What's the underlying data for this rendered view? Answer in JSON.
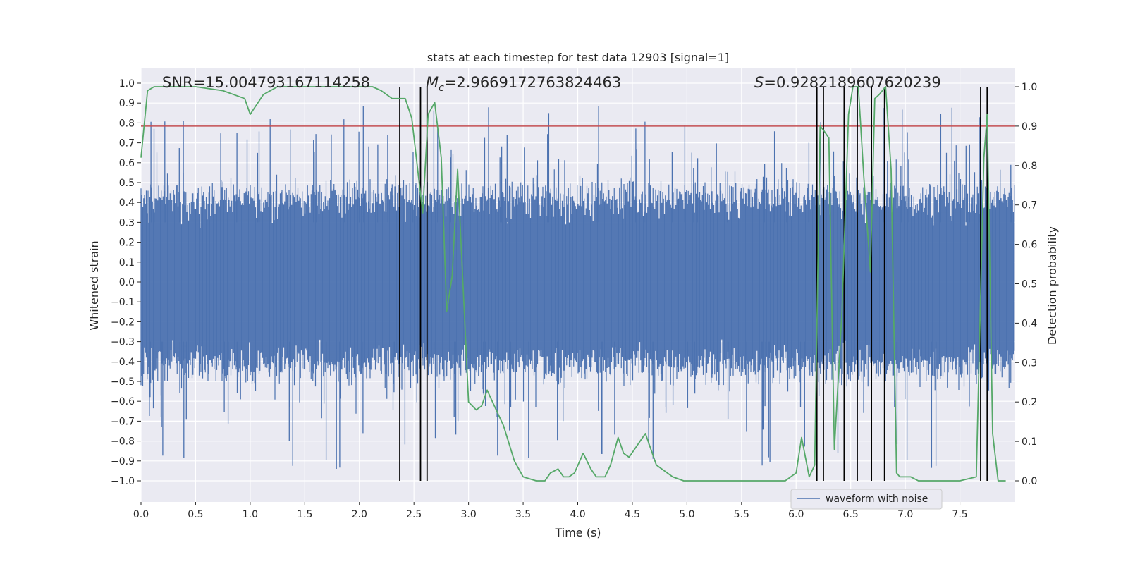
{
  "chart_data": {
    "type": "line",
    "title": "stats at each timestep for test data 12903 [signal=1]",
    "xlabel": "Time (s)",
    "ylabel_left": "Whitened strain",
    "ylabel_right": "Detection probability",
    "xlim": [
      0.0,
      8.0
    ],
    "ylim_left": [
      -1.1,
      1.1
    ],
    "ylim_right": [
      -0.05,
      1.05
    ],
    "x_ticks": [
      0.0,
      0.5,
      1.0,
      1.5,
      2.0,
      2.5,
      3.0,
      3.5,
      4.0,
      4.5,
      5.0,
      5.5,
      6.0,
      6.5,
      7.0,
      7.5
    ],
    "x_tick_labels": [
      "0.0",
      "0.5",
      "1.0",
      "1.5",
      "2.0",
      "2.5",
      "3.0",
      "3.5",
      "4.0",
      "4.5",
      "5.0",
      "5.5",
      "6.0",
      "6.5",
      "7.0",
      "7.5"
    ],
    "y_ticks_left": [
      1.0,
      0.9,
      0.8,
      0.7,
      0.6,
      0.5,
      0.4,
      0.3,
      0.2,
      0.1,
      0.0,
      -0.1,
      -0.2,
      -0.3,
      -0.4,
      -0.5,
      -0.6,
      -0.7,
      -0.8,
      -0.9,
      -1.0
    ],
    "y_tick_labels_left": [
      "1.0",
      "0.9",
      "0.8",
      "0.7",
      "0.6",
      "0.5",
      "0.4",
      "0.3",
      "0.2",
      "0.1",
      "0.0",
      "−0.1",
      "−0.2",
      "−0.3",
      "−0.4",
      "−0.5",
      "−0.6",
      "−0.7",
      "−0.8",
      "−0.9",
      "−1.0"
    ],
    "y_ticks_right": [
      1.0,
      0.9,
      0.8,
      0.7,
      0.6,
      0.5,
      0.4,
      0.3,
      0.2,
      0.1,
      0.0
    ],
    "y_tick_labels_right": [
      "1.0",
      "0.9",
      "0.8",
      "0.7",
      "0.6",
      "0.5",
      "0.4",
      "0.3",
      "0.2",
      "0.1",
      "0.0"
    ],
    "grid": true,
    "annotations": {
      "snr": "SNR=15.004793167114258",
      "mc_symbol": "M",
      "mc_subscript": "c",
      "mc_value": "=2.9669172763824463",
      "s_symbol": "S",
      "s_value": "=0.9282189607620239"
    },
    "threshold": {
      "value_right": 0.9,
      "color": "#c44e52"
    },
    "detection_probability": {
      "name": "Detection probability",
      "color": "#55a868",
      "x": [
        0.0,
        0.06,
        0.12,
        0.5,
        0.75,
        0.85,
        0.95,
        1.0,
        1.12,
        1.25,
        1.5,
        1.75,
        2.0,
        2.12,
        2.2,
        2.3,
        2.42,
        2.48,
        2.53,
        2.58,
        2.63,
        2.69,
        2.75,
        2.8,
        2.85,
        2.9,
        3.0,
        3.07,
        3.12,
        3.17,
        3.22,
        3.32,
        3.42,
        3.5,
        3.62,
        3.7,
        3.75,
        3.82,
        3.87,
        3.92,
        3.97,
        4.05,
        4.12,
        4.17,
        4.25,
        4.3,
        4.37,
        4.42,
        4.47,
        4.62,
        4.72,
        4.87,
        4.97,
        5.05,
        5.25,
        5.5,
        5.75,
        5.9,
        6.0,
        6.05,
        6.12,
        6.17,
        6.22,
        6.25,
        6.3,
        6.35,
        6.42,
        6.48,
        6.52,
        6.57,
        6.62,
        6.68,
        6.72,
        6.76,
        6.82,
        6.87,
        6.92,
        6.95,
        7.05,
        7.12,
        7.2,
        7.5,
        7.65,
        7.72,
        7.75,
        7.8,
        7.85,
        7.92
      ],
      "values": [
        0.82,
        0.99,
        1.0,
        1.0,
        0.99,
        0.98,
        0.97,
        0.93,
        0.98,
        1.0,
        1.0,
        1.0,
        1.0,
        1.0,
        0.99,
        0.97,
        0.97,
        0.92,
        0.8,
        0.68,
        0.93,
        0.96,
        0.82,
        0.43,
        0.52,
        0.79,
        0.2,
        0.18,
        0.19,
        0.23,
        0.2,
        0.14,
        0.05,
        0.01,
        0.0,
        0.0,
        0.02,
        0.03,
        0.01,
        0.01,
        0.02,
        0.07,
        0.03,
        0.01,
        0.01,
        0.04,
        0.11,
        0.07,
        0.06,
        0.12,
        0.04,
        0.01,
        0.0,
        0.0,
        0.0,
        0.0,
        0.0,
        0.0,
        0.02,
        0.11,
        0.01,
        0.04,
        0.9,
        0.89,
        0.87,
        0.08,
        0.43,
        0.93,
        1.0,
        1.0,
        0.77,
        0.53,
        0.97,
        0.98,
        1.0,
        0.79,
        0.02,
        0.01,
        0.01,
        0.0,
        0.0,
        0.0,
        0.01,
        0.82,
        0.93,
        0.12,
        0.0,
        0.0
      ]
    },
    "event_markers": {
      "color": "#000000",
      "x": [
        2.37,
        2.56,
        2.62,
        6.19,
        6.25,
        6.44,
        6.56,
        6.69,
        6.81,
        7.69,
        7.75
      ],
      "y_ranges_right": [
        [
          0.0,
          1.0
        ],
        [
          0.0,
          1.0
        ],
        [
          0.0,
          1.0
        ],
        [
          0.0,
          1.0
        ],
        [
          0.0,
          1.0
        ],
        [
          0.0,
          1.0
        ],
        [
          0.0,
          1.0
        ],
        [
          0.0,
          1.0
        ],
        [
          0.0,
          1.0
        ],
        [
          0.0,
          1.0
        ],
        [
          0.0,
          1.0
        ]
      ]
    },
    "waveform": {
      "name": "waveform with noise",
      "color": "#4c72b0",
      "description": "dense noisy strain samples spanning roughly -1.0 to 1.0 across 0 to 8 s"
    },
    "legend": {
      "label": "waveform with noise",
      "placement": "lower-right"
    }
  }
}
